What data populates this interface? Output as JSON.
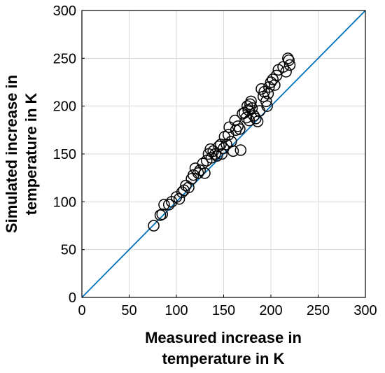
{
  "chart_data": {
    "type": "scatter",
    "xlabel": [
      "Measured increase in",
      "temperature in K"
    ],
    "ylabel": [
      "Simulated increase in",
      "temperature in K"
    ],
    "xlim": [
      0,
      300
    ],
    "ylim": [
      0,
      300
    ],
    "xticks": [
      0,
      50,
      100,
      150,
      200,
      250,
      300
    ],
    "yticks": [
      0,
      50,
      100,
      150,
      200,
      250,
      300
    ],
    "grid": true,
    "reference_line": {
      "from": [
        0,
        0
      ],
      "to": [
        300,
        300
      ],
      "color": "#0072BD"
    },
    "marker": "circle-open",
    "marker_color": "#000000",
    "series": [
      {
        "points": [
          [
            76,
            75
          ],
          [
            83,
            86
          ],
          [
            85,
            87
          ],
          [
            87,
            97
          ],
          [
            92,
            97
          ],
          [
            95,
            100
          ],
          [
            100,
            105
          ],
          [
            103,
            103
          ],
          [
            106,
            110
          ],
          [
            108,
            112
          ],
          [
            110,
            117
          ],
          [
            113,
            115
          ],
          [
            116,
            124
          ],
          [
            118,
            128
          ],
          [
            120,
            135
          ],
          [
            123,
            130
          ],
          [
            125,
            133
          ],
          [
            128,
            140
          ],
          [
            130,
            130
          ],
          [
            132,
            143
          ],
          [
            134,
            150
          ],
          [
            136,
            155
          ],
          [
            137,
            146
          ],
          [
            139,
            153
          ],
          [
            141,
            150
          ],
          [
            143,
            148
          ],
          [
            145,
            158
          ],
          [
            147,
            160
          ],
          [
            148,
            150
          ],
          [
            150,
            156
          ],
          [
            151,
            168
          ],
          [
            153,
            160
          ],
          [
            155,
            170
          ],
          [
            156,
            178
          ],
          [
            158,
            163
          ],
          [
            160,
            153
          ],
          [
            162,
            185
          ],
          [
            163,
            175
          ],
          [
            165,
            179
          ],
          [
            167,
            176
          ],
          [
            168,
            154
          ],
          [
            170,
            192
          ],
          [
            172,
            193
          ],
          [
            174,
            188
          ],
          [
            175,
            200
          ],
          [
            176,
            196
          ],
          [
            177,
            185
          ],
          [
            178,
            202
          ],
          [
            179,
            205
          ],
          [
            180,
            198
          ],
          [
            182,
            190
          ],
          [
            184,
            187
          ],
          [
            186,
            184
          ],
          [
            188,
            195
          ],
          [
            190,
            218
          ],
          [
            192,
            210
          ],
          [
            193,
            215
          ],
          [
            195,
            205
          ],
          [
            196,
            200
          ],
          [
            197,
            213
          ],
          [
            198,
            220
          ],
          [
            200,
            225
          ],
          [
            202,
            228
          ],
          [
            204,
            222
          ],
          [
            206,
            232
          ],
          [
            208,
            238
          ],
          [
            213,
            241
          ],
          [
            216,
            236
          ],
          [
            218,
            250
          ],
          [
            219,
            248
          ],
          [
            220,
            243
          ]
        ]
      }
    ]
  }
}
